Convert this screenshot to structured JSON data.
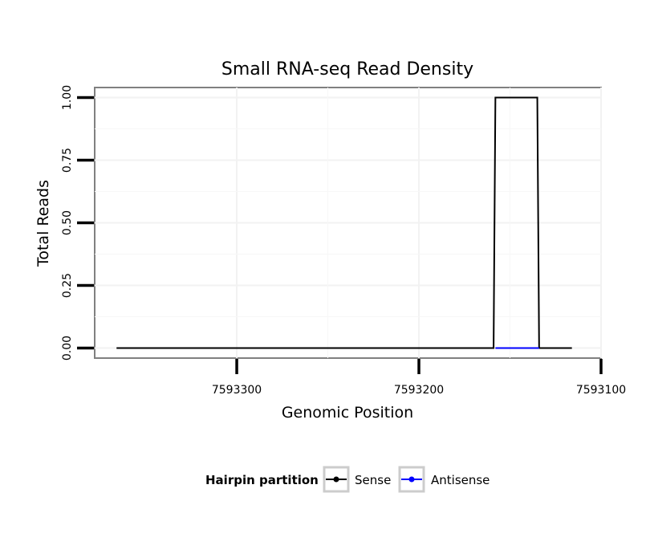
{
  "chart_data": {
    "type": "line",
    "title": "Small RNA-seq Read Density",
    "xlabel": "Genomic Position",
    "ylabel": "Total Reads",
    "xlim": [
      7593378,
      7593100
    ],
    "ylim": [
      -0.04,
      1.04
    ],
    "x_reversed": true,
    "x_ticks": [
      7593300,
      7593200,
      7593100
    ],
    "x_tick_labels": [
      "7593300",
      "7593200",
      "7593100"
    ],
    "y_ticks": [
      0,
      0.25,
      0.5,
      0.75,
      1.0
    ],
    "y_tick_labels": [
      "0.00",
      "0.25",
      "0.50",
      "0.75",
      "1.00"
    ],
    "grid": true,
    "legend": {
      "title": "Hairpin partition",
      "placement": "bottom",
      "entries": [
        "Sense",
        "Antisense"
      ]
    },
    "series": [
      {
        "name": "Sense",
        "color": "#000000",
        "x": [
          7593366,
          7593159,
          7593158,
          7593135,
          7593134,
          7593116
        ],
        "y": [
          0,
          0,
          1,
          1,
          0,
          0
        ]
      },
      {
        "name": "Antisense",
        "color": "#0000ff",
        "x": [
          7593158,
          7593134
        ],
        "y": [
          0,
          0
        ]
      }
    ]
  }
}
